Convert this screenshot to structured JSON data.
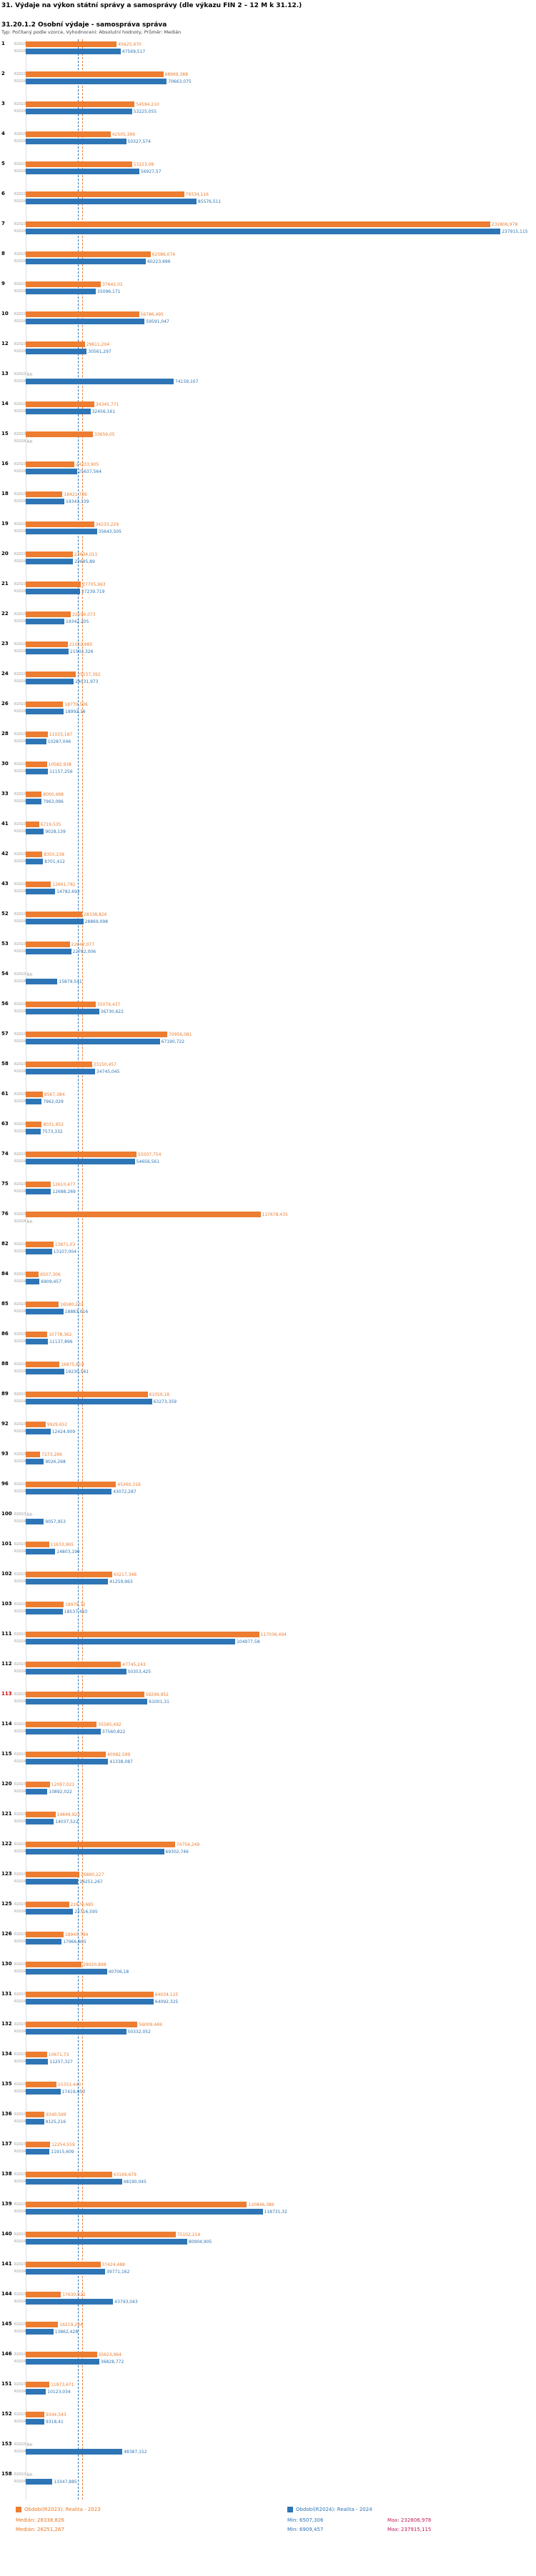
{
  "header": {
    "title": "31. Výdaje na výkon státní správy a samosprávy (dle výkazu FIN 2 – 12 M k 31.12.)",
    "subtitle": "31.20.1.2 Osobní výdaje - samospráva správa",
    "meta": "Typ: Počítaný podle vzorce, Vyhodnocení: Absolutní hodnoty, Průměr: Medián"
  },
  "chart_data": {
    "type": "bar",
    "orientation": "horizontal",
    "title": "31. Výdaje na výkon státní správy a samosprávy (dle výkazu FIN 2 – 12 M k 31.12.)",
    "subtitle": "31.20.1.2 Osobní výdaje - samospráva správa",
    "series_labels": [
      "R2023",
      "R2024"
    ],
    "colors": {
      "r2023": "#ED7D31",
      "r2024": "#2E75B6"
    },
    "xmax": 240000,
    "missing_label": "kn",
    "medians": {
      "r2023": 28338.826,
      "r2024": 26251.267
    },
    "legend": [
      {
        "label": "Období(R2023): Realita - 2023",
        "color": "#ED7D31"
      },
      {
        "label": "Období(R2024): Realita - 2024",
        "color": "#2E75B6"
      }
    ],
    "stats": {
      "r2023": {
        "median": "Medián: 28338,826",
        "min": "Min: 6507,306",
        "max": "Max: 232806,978"
      },
      "r2024": {
        "median": "Medián: 26251,267",
        "min": "Min: 6909,457",
        "max": "Max: 237915,115"
      }
    },
    "rows": [
      [
        "1",
        45625.97,
        "45625,970",
        47569.517,
        "47569,517"
      ],
      [
        "2",
        68969.388,
        "68969,388",
        70663.075,
        "70663,075"
      ],
      [
        "3",
        54594.21,
        "54594,210",
        53225.055,
        "53225,055"
      ],
      [
        "4",
        42505.366,
        "42505,366",
        50327.574,
        "50327,574"
      ],
      [
        "5",
        53223.08,
        "53223,08",
        56927.57,
        "56927,57"
      ],
      [
        "6",
        79334.116,
        "79334,116",
        85576.511,
        "85576,511"
      ],
      [
        "7",
        232806.978,
        "232806,978",
        237915.115,
        "237915,115"
      ],
      [
        "8",
        62586.074,
        "62586,074",
        60223.696,
        "60223,696"
      ],
      [
        "9",
        37642.01,
        "37642,01",
        35096.171,
        "35096,171"
      ],
      [
        "10",
        56786.495,
        "56786,495",
        59591.047,
        "59591,047"
      ],
      [
        "12",
        29611.204,
        "29611,204",
        30561.297,
        "30561,297"
      ],
      [
        "13",
        null,
        "kn",
        74159.107,
        "74159,107"
      ],
      [
        "14",
        34345.771,
        "34345,771",
        32456.161,
        "32456,161"
      ],
      [
        "15",
        33656.05,
        "33656,05",
        null,
        "kn"
      ],
      [
        "16",
        24333.905,
        "24333,905",
        25637.564,
        "25637,564"
      ],
      [
        "18",
        18421.736,
        "18421,736",
        19343.339,
        "19343,339"
      ],
      [
        "19",
        34233.229,
        "34233,229",
        35643.505,
        "35643,505"
      ],
      [
        "20",
        23634.011,
        "23634,011",
        23695.89,
        "23695,89"
      ],
      [
        "21",
        27705.963,
        "27705,963",
        27239.719,
        "27239,719"
      ],
      [
        "22",
        22594.073,
        "22594,073",
        19342.205,
        "19342,205"
      ],
      [
        "23",
        21032.985,
        "21032,985",
        21503.326,
        "21503,326"
      ],
      [
        "24",
        25157.392,
        "25157,392",
        24031.973,
        "24031,973"
      ],
      [
        "26",
        18770.506,
        "18770,506",
        18992.16,
        "18992,16"
      ],
      [
        "28",
        11033.187,
        "11033,187",
        10287.046,
        "10287,046"
      ],
      [
        "30",
        10582.938,
        "10582,938",
        11157.256,
        "11157,256"
      ],
      [
        "33",
        8000.498,
        "8000,498",
        7963.096,
        "7963,096"
      ],
      [
        "41",
        6719.535,
        "6719,535",
        9028.139,
        "9028,139"
      ],
      [
        "42",
        8350.238,
        "8350,238",
        8701.412,
        "8701,412"
      ],
      [
        "43",
        12661.781,
        "12661,781",
        14782.693,
        "14782,693"
      ],
      [
        "52",
        28338.826,
        "28338,826",
        28869.098,
        "28869,098"
      ],
      [
        "53",
        22042.077,
        "22042,077",
        22782.006,
        "22782,006"
      ],
      [
        "54",
        null,
        "kn",
        15879.541,
        "15879,541"
      ],
      [
        "56",
        35079.437,
        "35079,437",
        36730.622,
        "36730,622"
      ],
      [
        "57",
        70956.081,
        "70956,081",
        67190.722,
        "67190,722"
      ],
      [
        "58",
        33150.457,
        "33150,457",
        34745.045,
        "34745,045"
      ],
      [
        "61",
        8567.384,
        "8567,384",
        7962.029,
        "7962,029"
      ],
      [
        "63",
        8031.952,
        "8031,952",
        7573.332,
        "7573,332"
      ],
      [
        "74",
        55507.754,
        "55507,754",
        54656.561,
        "54656,561"
      ],
      [
        "75",
        12610.477,
        "12610,477",
        12688.269,
        "12688,269"
      ],
      [
        "76",
        117678.435,
        "117678,435",
        null,
        "kn"
      ],
      [
        "82",
        13871.03,
        "13871,03",
        13107.004,
        "13107,004"
      ],
      [
        "84",
        6507.306,
        "6507,306",
        6909.457,
        "6909,457"
      ],
      [
        "85",
        16580.233,
        "16580,233",
        18883.016,
        "18883,016"
      ],
      [
        "86",
        10778.362,
        "10778,362",
        11137.896,
        "11137,896"
      ],
      [
        "88",
        16875.619,
        "16875,619",
        19230.561,
        "19230,561"
      ],
      [
        "89",
        61059.18,
        "61059,18",
        63273.359,
        "63273,359"
      ],
      [
        "92",
        9929.652,
        "9929,652",
        12424.909,
        "12424,909"
      ],
      [
        "93",
        7273.296,
        "7273,296",
        9026.268,
        "9026,268"
      ],
      [
        "96",
        45260.316,
        "45260,316",
        43072.287,
        "43072,287"
      ],
      [
        "100",
        null,
        "kn",
        9057.953,
        "9057,953"
      ],
      [
        "101",
        11633.965,
        "11633,965",
        14803.19,
        "14803,190"
      ],
      [
        "102",
        43217.348,
        "43217,348",
        41259.963,
        "41259,963"
      ],
      [
        "103",
        18979.72,
        "18979,72",
        18537.493,
        "18537,493"
      ],
      [
        "111",
        117036.494,
        "117036,494",
        104977.58,
        "104977,58"
      ],
      [
        "112",
        47745.243,
        "47745,243",
        50353.425,
        "50353,425"
      ],
      [
        "113",
        59299.952,
        "59299,952",
        61001.31,
        "61001,31",
        true
      ],
      [
        "114",
        35585.492,
        "35585,492",
        37560.822,
        "37560,822"
      ],
      [
        "115",
        40082.599,
        "40082,599",
        41338.087,
        "41338,087"
      ],
      [
        "120",
        12097.021,
        "12097,021",
        10892.022,
        "10892,022"
      ],
      [
        "121",
        14849.923,
        "14849,923",
        14037.522,
        "14037,522"
      ],
      [
        "122",
        74754.249,
        "74754,249",
        69302.746,
        "69302,746"
      ],
      [
        "123",
        26860.227,
        "26860,227",
        26251.267,
        "26251,267"
      ],
      [
        "125",
        21670.685,
        "21670,685",
        23716.595,
        "23716,595"
      ],
      [
        "126",
        18945.794,
        "18945,794",
        17966.805,
        "17966,805"
      ],
      [
        "130",
        28020.898,
        "28020,898",
        40706.18,
        "40706,18"
      ],
      [
        "131",
        64034.125,
        "64034,125",
        64092.325,
        "64092,325"
      ],
      [
        "132",
        56009.469,
        "56009,469",
        50332.052,
        "50332,052"
      ],
      [
        "134",
        10671.73,
        "10671,73",
        11257.327,
        "11257,327"
      ],
      [
        "135",
        15353.443,
        "15353,443",
        17419.953,
        "17419,953"
      ],
      [
        "136",
        9340.569,
        "9340,569",
        9125.216,
        "9125,216"
      ],
      [
        "137",
        12254.559,
        "12254,559",
        11915.609,
        "11915,609"
      ],
      [
        "138",
        43169.679,
        "43169,679",
        48190.045,
        "48190,045"
      ],
      [
        "139",
        110846.386,
        "110846,386",
        118731.32,
        "118731,32"
      ],
      [
        "140",
        75102.214,
        "75102,214",
        80904.905,
        "80904,905"
      ],
      [
        "141",
        37424.488,
        "37424,488",
        39771.162,
        "39771,162"
      ],
      [
        "144",
        17630.922,
        "17630,922",
        43793.043,
        "43793,043"
      ],
      [
        "145",
        16219.284,
        "16219,284",
        13862.428,
        "13862,428"
      ],
      [
        "146",
        35623.964,
        "35623,964",
        36828.772,
        "36828,772"
      ],
      [
        "151",
        11873.671,
        "11873,671",
        10123.034,
        "10123,034"
      ],
      [
        "152",
        9344.543,
        "9344,543",
        9318.41,
        "9318,41"
      ],
      [
        "153",
        null,
        "kn",
        48387.152,
        "48387,152"
      ],
      [
        "158",
        null,
        "kn",
        13347.885,
        "13347,885"
      ]
    ]
  }
}
